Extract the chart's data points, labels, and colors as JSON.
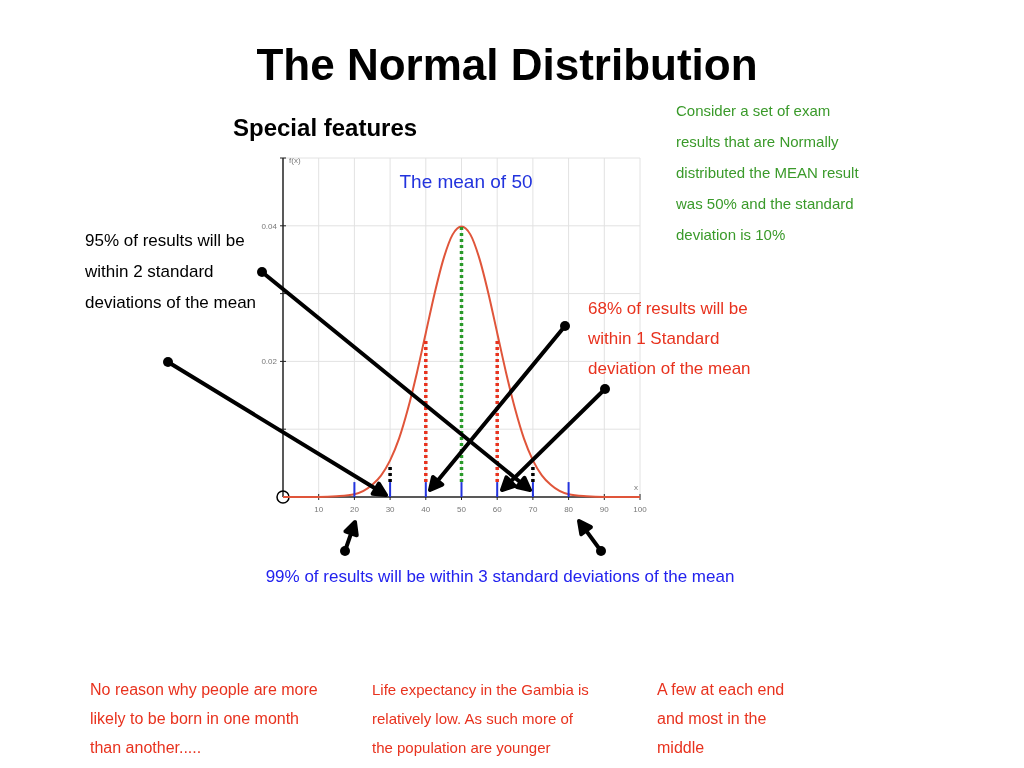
{
  "chart_data": {
    "type": "line",
    "title": "The Normal Distribution",
    "subtitle": "Special features",
    "xlabel": "x",
    "ylabel": "f(x)",
    "xlim": [
      0,
      100
    ],
    "ylim": [
      0,
      0.05
    ],
    "xticks": [
      10,
      20,
      30,
      40,
      50,
      60,
      70,
      80,
      90,
      100
    ],
    "yticks": [
      {
        "value": 0.01,
        "label": null
      },
      0.02,
      {
        "value": 0.03,
        "label": null
      },
      0.04,
      {
        "value": 0.05,
        "label": null
      }
    ],
    "grid": true,
    "marker": "none",
    "line_style": "solid",
    "series": [
      {
        "color": "#e0553a",
        "x": [
          0,
          10,
          15,
          20,
          25,
          27.5,
          30,
          32.5,
          35,
          37.5,
          40,
          42.5,
          45,
          47.5,
          50,
          52.5,
          55,
          57.5,
          60,
          62.5,
          65,
          67.5,
          70,
          72.5,
          75,
          80,
          85,
          90,
          100
        ],
        "values": [
          0,
          0,
          0.0001,
          0.0004,
          0.0018,
          0.0032,
          0.0054,
          0.0086,
          0.013,
          0.0183,
          0.0242,
          0.0301,
          0.0352,
          0.0387,
          0.0399,
          0.0387,
          0.0352,
          0.0301,
          0.0242,
          0.0183,
          0.013,
          0.0086,
          0.0054,
          0.0032,
          0.0018,
          0.0004,
          0.0001,
          0,
          0
        ]
      },
      {
        "color": "#2a9a2a",
        "line_style": "dotted",
        "x": [
          50,
          50
        ],
        "values": [
          0.0022,
          0.0399
        ]
      },
      {
        "color": "#e8321e",
        "line_style": "dotted",
        "x": [
          40,
          40
        ],
        "values": [
          0.0022,
          0.023
        ]
      },
      {
        "color": "#e8321e",
        "line_style": "dotted",
        "x": [
          60,
          60
        ],
        "values": [
          0.0022,
          0.023
        ]
      },
      {
        "color": "#000000",
        "line_style": "dotted",
        "x": [
          30,
          30
        ],
        "values": [
          0.0022,
          0.0045
        ]
      },
      {
        "color": "#000000",
        "line_style": "dotted",
        "x": [
          70,
          70
        ],
        "values": [
          0.0022,
          0.0045
        ]
      },
      {
        "color": "#2233dd",
        "x": [
          20,
          20
        ],
        "values": [
          0,
          0.0022
        ]
      },
      {
        "color": "#2233dd",
        "x": [
          30,
          30
        ],
        "values": [
          0,
          0.0022
        ]
      },
      {
        "color": "#2233dd",
        "x": [
          40,
          40
        ],
        "values": [
          0,
          0.0022
        ]
      },
      {
        "color": "#2233dd",
        "x": [
          50,
          50
        ],
        "values": [
          0,
          0.0022
        ]
      },
      {
        "color": "#2233dd",
        "x": [
          60,
          60
        ],
        "values": [
          0,
          0.0022
        ]
      },
      {
        "color": "#2233dd",
        "x": [
          70,
          70
        ],
        "values": [
          0,
          0.0022
        ]
      },
      {
        "color": "#2233dd",
        "x": [
          80,
          80
        ],
        "values": [
          0,
          0.0022
        ]
      }
    ],
    "annotations": [
      "The mean of 50",
      "Consider a set of exam results that are Normally distributed the MEAN result was 50% and the standard deviation is 10%",
      "95% of results will be within 2 standard deviations of the mean",
      "68% of results will be within 1 Standard deviation of the mean",
      "99% of results will be within 3 standard deviations of the mean",
      "No reason why people are more likely to be born in one month than another.....",
      "Life expectancy in the Gambia is relatively low. As such more of the population are younger",
      "A few at each end and most in the middle"
    ]
  }
}
